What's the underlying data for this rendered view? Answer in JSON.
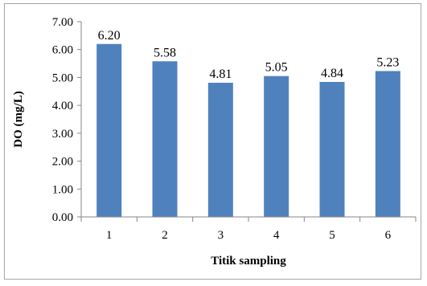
{
  "chart_data": {
    "type": "bar",
    "title": "",
    "xlabel": "Titik sampling",
    "ylabel": "DO (mg/L)",
    "categories": [
      "1",
      "2",
      "3",
      "4",
      "5",
      "6"
    ],
    "values": [
      6.2,
      5.58,
      4.81,
      5.05,
      4.84,
      5.23
    ],
    "data_labels": [
      "6.20",
      "5.58",
      "4.81",
      "5.05",
      "4.84",
      "5.23"
    ],
    "y_ticks": [
      "0.00",
      "1.00",
      "2.00",
      "3.00",
      "4.00",
      "5.00",
      "6.00",
      "7.00"
    ],
    "ylim": [
      0,
      7
    ],
    "grid": false,
    "legend": "none",
    "bar_color": "#4f81bd",
    "axis_color": "#868686"
  }
}
